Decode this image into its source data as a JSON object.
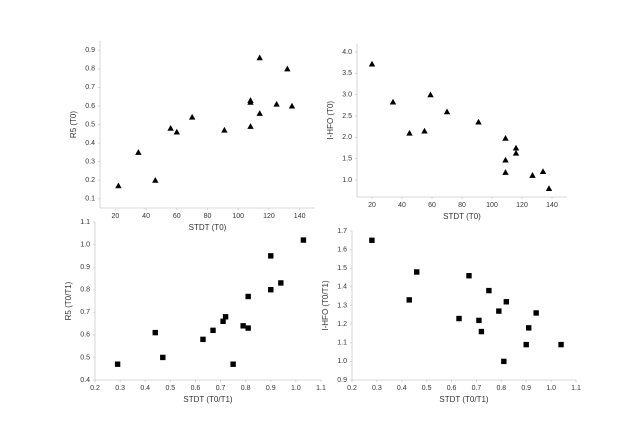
{
  "chart_data": [
    {
      "type": "scatter",
      "marker": "triangle",
      "color": "#000000",
      "x_label": "STDT (T0)",
      "y_label": "R5 (T0)",
      "x": [
        22,
        35,
        46,
        56,
        60,
        70,
        91,
        108,
        108,
        108,
        114,
        114,
        125,
        132,
        135
      ],
      "values": [
        0.17,
        0.35,
        0.2,
        0.48,
        0.46,
        0.54,
        0.47,
        0.62,
        0.63,
        0.49,
        0.86,
        0.56,
        0.61,
        0.8,
        0.6
      ],
      "xlim": [
        10,
        150
      ],
      "xticks": [
        20,
        40,
        60,
        80,
        100,
        120,
        140
      ],
      "ylim": [
        0.05,
        0.95
      ],
      "yticks": [
        0.1,
        0.2,
        0.3,
        0.4,
        0.5,
        0.6,
        0.7,
        0.8,
        0.9
      ]
    },
    {
      "type": "scatter",
      "marker": "triangle",
      "color": "#000000",
      "x_label": "STDT (T0)",
      "y_label": "I-HFO (T0)",
      "x": [
        20,
        34,
        45,
        55,
        59,
        70,
        91,
        109,
        109,
        109,
        116,
        116,
        127,
        134,
        138
      ],
      "values": [
        3.72,
        2.83,
        2.1,
        2.15,
        3.0,
        2.6,
        2.36,
        1.98,
        1.47,
        1.18,
        1.75,
        1.63,
        1.11,
        1.2,
        0.8
      ],
      "xlim": [
        10,
        150
      ],
      "xticks": [
        20,
        40,
        60,
        80,
        100,
        120,
        140
      ],
      "ylim": [
        0.6,
        4.2
      ],
      "yticks": [
        {
          "value": 1,
          "label": "1.0"
        },
        1.5,
        {
          "value": 2,
          "label": "2.0"
        },
        2.5,
        {
          "value": 3,
          "label": "3.0"
        },
        3.5,
        {
          "value": 4,
          "label": "4.0"
        }
      ]
    },
    {
      "type": "scatter",
      "marker": "square",
      "color": "#000000",
      "x_label": "STDT (T0/T1)",
      "y_label": "R5 (T0/T1)",
      "x": [
        0.29,
        0.44,
        0.47,
        0.63,
        0.67,
        0.71,
        0.72,
        0.75,
        0.79,
        0.81,
        0.81,
        0.9,
        0.9,
        0.94,
        1.03
      ],
      "values": [
        0.47,
        0.61,
        0.5,
        0.58,
        0.62,
        0.66,
        0.68,
        0.47,
        0.64,
        0.63,
        0.77,
        0.95,
        0.8,
        0.83,
        1.02
      ],
      "xlim": [
        0.2,
        1.1
      ],
      "xticks": [
        0.2,
        0.3,
        0.4,
        0.5,
        0.6,
        0.7,
        0.8,
        0.9,
        {
          "value": 1,
          "label": "1.0"
        },
        1.1
      ],
      "ylim": [
        0.4,
        1.1
      ],
      "yticks": [
        0.4,
        0.5,
        0.6,
        0.7,
        0.8,
        0.9,
        {
          "value": 1,
          "label": "1.0"
        },
        1.1
      ]
    },
    {
      "type": "scatter",
      "marker": "square",
      "color": "#000000",
      "x_label": "STDT (T0/T1)",
      "y_label": "I-HFO (T0/T1)",
      "x": [
        0.28,
        0.43,
        0.46,
        0.63,
        0.67,
        0.71,
        0.72,
        0.75,
        0.79,
        0.81,
        0.82,
        0.9,
        0.91,
        0.94,
        1.04
      ],
      "values": [
        1.65,
        1.33,
        1.48,
        1.23,
        1.46,
        1.22,
        1.16,
        1.38,
        1.27,
        1.0,
        1.32,
        1.09,
        1.18,
        1.26,
        1.09
      ],
      "xlim": [
        0.2,
        1.1
      ],
      "xticks": [
        0.2,
        0.3,
        0.4,
        0.5,
        0.6,
        0.7,
        0.8,
        0.9,
        {
          "value": 1,
          "label": "1.0"
        },
        1.1
      ],
      "ylim": [
        0.9,
        1.7
      ],
      "yticks": [
        0.9,
        {
          "value": 1,
          "label": "1.0"
        },
        1.1,
        1.2,
        1.3,
        1.4,
        1.5,
        1.6,
        1.7
      ]
    }
  ]
}
